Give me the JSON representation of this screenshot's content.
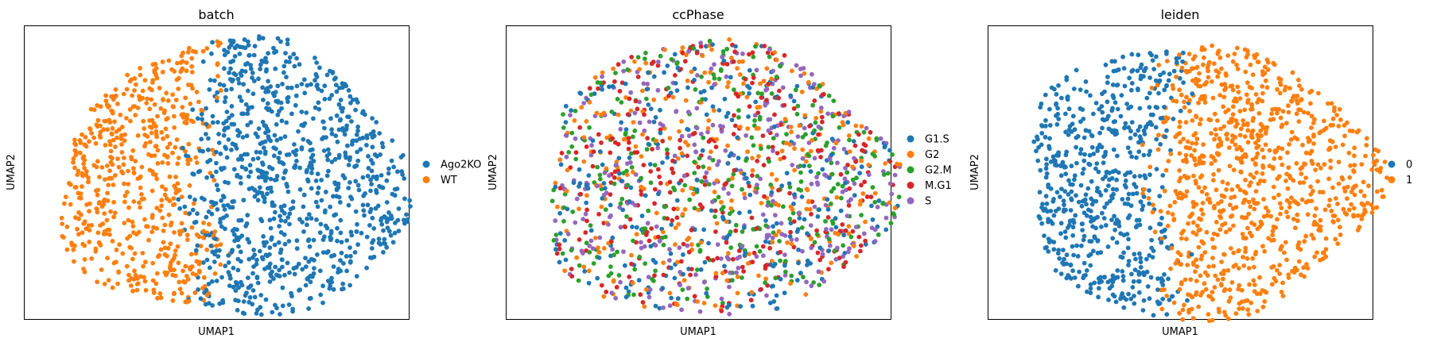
{
  "figure_title": "",
  "chart_data": [
    {
      "type": "scatter",
      "title": "batch",
      "xlabel": "UMAP1",
      "ylabel": "UMAP2",
      "ticks": false,
      "grid": false,
      "legend_position": "right-outside",
      "point_count": 1500,
      "pattern": "split",
      "split_colors": {
        "left": 1,
        "right": 0
      },
      "series": [
        {
          "name": "Ago2KO",
          "color": "#1f77b4"
        },
        {
          "name": "WT",
          "color": "#ff7f0e"
        }
      ]
    },
    {
      "type": "scatter",
      "title": "ccPhase",
      "xlabel": "UMAP1",
      "ylabel": "UMAP2",
      "ticks": false,
      "grid": false,
      "legend_position": "right-outside",
      "point_count": 1500,
      "pattern": "mixed",
      "series": [
        {
          "name": "G1.S",
          "color": "#1f77b4"
        },
        {
          "name": "G2",
          "color": "#ff7f0e"
        },
        {
          "name": "G2.M",
          "color": "#2ca02c"
        },
        {
          "name": "M.G1",
          "color": "#d62728"
        },
        {
          "name": "S",
          "color": "#9467bd"
        }
      ]
    },
    {
      "type": "scatter",
      "title": "leiden",
      "xlabel": "UMAP1",
      "ylabel": "UMAP2",
      "ticks": false,
      "grid": false,
      "legend_position": "right-outside",
      "point_count": 1500,
      "pattern": "split",
      "split_colors": {
        "left": 0,
        "right": 1
      },
      "series": [
        {
          "name": "0",
          "color": "#1f77b4"
        },
        {
          "name": "1",
          "color": "#ff7f0e"
        }
      ]
    }
  ]
}
